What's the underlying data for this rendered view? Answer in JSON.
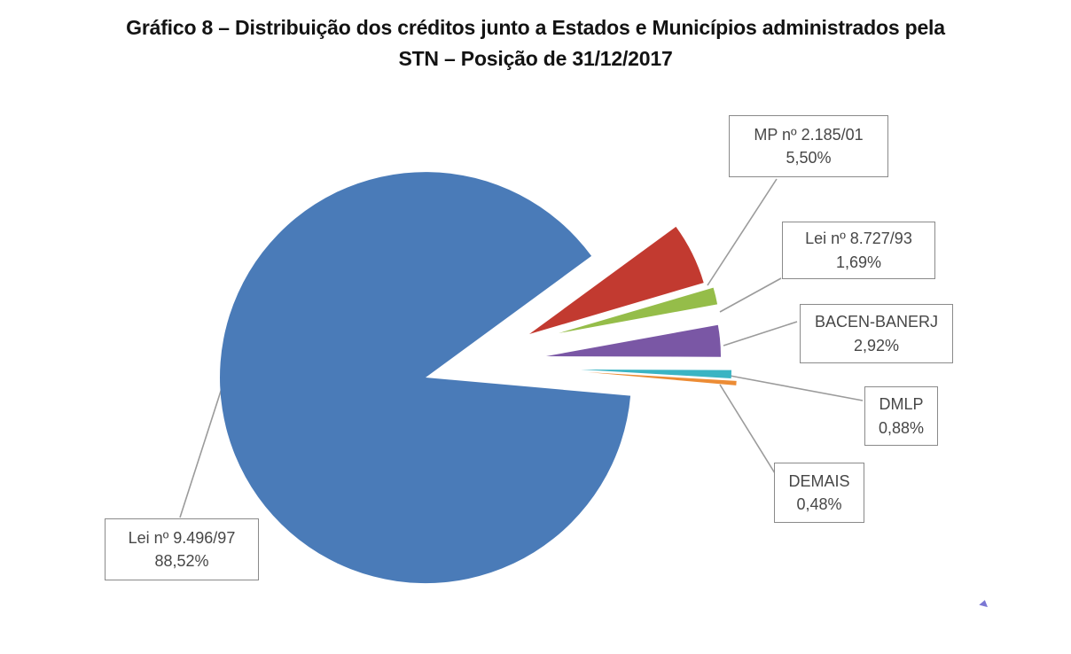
{
  "title": {
    "line1": "Gráfico 8 – Distribuição dos créditos junto a Estados e Municípios administrados pela",
    "line2": "STN – Posição de 31/12/2017"
  },
  "chart_data": {
    "type": "pie",
    "title": "Gráfico 8 – Distribuição dos créditos junto a Estados e Municípios administrados pela STN – Posição de 31/12/2017",
    "unit": "%",
    "slices": [
      {
        "label": "MP nº 2.185/01",
        "value": 5.5,
        "display": "5,50%",
        "color": "#c23a30"
      },
      {
        "label": "Lei nº 8.727/93",
        "value": 1.69,
        "display": "1,69%",
        "color": "#95bd49"
      },
      {
        "label": "BACEN-BANERJ",
        "value": 2.92,
        "display": "2,92%",
        "color": "#7a57a5"
      },
      {
        "label": "DMLP",
        "value": 0.88,
        "display": "0,88%",
        "color": "#3ab4c3"
      },
      {
        "label": "DEMAIS",
        "value": 0.48,
        "display": "0,48%",
        "color": "#ec8c35"
      },
      {
        "label": "Lei nº 9.496/97",
        "value": 88.52,
        "display": "88,52%",
        "color": "#4a7bb8"
      }
    ],
    "layout_hints": {
      "exploded": true,
      "start_angle_deg": -36.2,
      "direction": "clockwise",
      "labels": "callout boxes with gray leader lines",
      "legend": "none",
      "leader_line_color": "#9b9b9b"
    }
  }
}
